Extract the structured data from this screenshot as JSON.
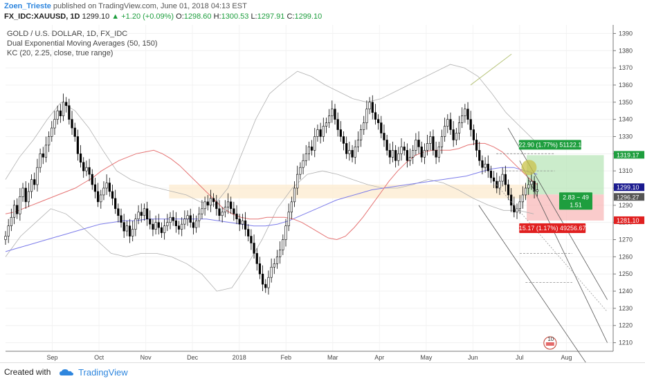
{
  "header": {
    "author": "Zoen_Trieste",
    "published_text": "published on TradingView.com, June 01, 2018 04:13 EST",
    "symbol": "FX_IDC:XAUUSD, 1D",
    "last": "1299.10",
    "change_arrow": "▲",
    "change": "+1.20 (+0.09%)",
    "open_label": "O:",
    "open": "1298.60",
    "high_label": "H:",
    "high": "1300.53",
    "low_label": "L:",
    "low": "1297.91",
    "close_label": "C:",
    "close": "1299.10"
  },
  "legend": {
    "line1": "GOLD / U.S. DOLLAR, 1D, FX_IDC",
    "line2": "Dual Exponential Moving Averages (50, 150)",
    "line3": "KC (20, 2.25, close, true range)"
  },
  "footer": {
    "created_with": "Created with",
    "brand": "TradingView"
  },
  "colors": {
    "up_candle": "#ffffff",
    "down_candle": "#000000",
    "ema50": "#e57373",
    "ema150": "#7b7bea",
    "kc_band": "#b0b0b0",
    "profit_zone": "#b9e6b9",
    "loss_zone": "#f8b9b9",
    "entry_band": "#fdecd2",
    "price_tag": "#1a1a8f",
    "target_tag": "#1e9e3e",
    "stop_tag": "#e02020"
  },
  "chart_data": {
    "type": "candlestick",
    "y_axis": {
      "min": 1205,
      "max": 1395,
      "ticks": [
        1210,
        1220,
        1230,
        1240,
        1250,
        1260,
        1270,
        1280,
        1290,
        1300,
        1310,
        1320,
        1330,
        1340,
        1350,
        1360,
        1370,
        1380,
        1390
      ]
    },
    "x_axis_labels": [
      "Sep",
      "Oct",
      "Nov",
      "Dec",
      "2018",
      "Feb",
      "Mar",
      "Apr",
      "May",
      "Jun",
      "Jul",
      "Aug"
    ],
    "x_axis_label_days": [
      40,
      80,
      120,
      160,
      200,
      240,
      280,
      320,
      360,
      400,
      440,
      480
    ],
    "x_range_days": [
      0,
      520
    ],
    "closes": [
      1272,
      1278,
      1283,
      1290,
      1285,
      1295,
      1300,
      1292,
      1298,
      1305,
      1302,
      1312,
      1320,
      1318,
      1325,
      1330,
      1335,
      1340,
      1345,
      1342,
      1350,
      1348,
      1340,
      1335,
      1330,
      1320,
      1315,
      1310,
      1312,
      1308,
      1302,
      1298,
      1292,
      1296,
      1300,
      1303,
      1298,
      1294,
      1288,
      1284,
      1280,
      1275,
      1278,
      1272,
      1276,
      1282,
      1286,
      1284,
      1288,
      1282,
      1279,
      1276,
      1280,
      1277,
      1274,
      1278,
      1280,
      1283,
      1281,
      1278,
      1276,
      1279,
      1282,
      1284,
      1280,
      1277,
      1281,
      1285,
      1288,
      1292,
      1290,
      1294,
      1292,
      1288,
      1284,
      1286,
      1289,
      1292,
      1288,
      1285,
      1282,
      1279,
      1281,
      1276,
      1272,
      1268,
      1262,
      1256,
      1250,
      1244,
      1242,
      1248,
      1254,
      1256,
      1260,
      1264,
      1270,
      1278,
      1286,
      1292,
      1300,
      1308,
      1312,
      1316,
      1320,
      1324,
      1322,
      1330,
      1334,
      1330,
      1336,
      1338,
      1342,
      1346,
      1340,
      1334,
      1330,
      1326,
      1320,
      1322,
      1318,
      1324,
      1328,
      1334,
      1338,
      1346,
      1350,
      1344,
      1340,
      1338,
      1332,
      1328,
      1322,
      1318,
      1322,
      1316,
      1320,
      1324,
      1322,
      1316,
      1318,
      1322,
      1328,
      1324,
      1318,
      1322,
      1326,
      1330,
      1322,
      1318,
      1324,
      1330,
      1336,
      1340,
      1334,
      1328,
      1332,
      1338,
      1342,
      1346,
      1340,
      1334,
      1328,
      1322,
      1316,
      1312,
      1314,
      1310,
      1306,
      1304,
      1300,
      1304,
      1308,
      1302,
      1296,
      1290,
      1286,
      1288,
      1292,
      1296,
      1300,
      1302,
      1304,
      1298,
      1299
    ],
    "ema50": [
      1285,
      1286,
      1288,
      1290,
      1292,
      1294,
      1296,
      1298,
      1300,
      1303,
      1306,
      1310,
      1313,
      1316,
      1318,
      1320,
      1321,
      1322,
      1320,
      1317,
      1313,
      1308,
      1303,
      1298,
      1293,
      1288,
      1285,
      1283,
      1282,
      1282,
      1283,
      1283,
      1283,
      1282,
      1280,
      1277,
      1274,
      1271,
      1270,
      1272,
      1277,
      1283,
      1290,
      1297,
      1304,
      1310,
      1315,
      1319,
      1321,
      1322,
      1322,
      1322,
      1323,
      1325,
      1326,
      1326,
      1324,
      1321,
      1316,
      1311,
      1306,
      1302
    ],
    "ema150": [
      1263,
      1265,
      1267,
      1269,
      1271,
      1273,
      1275,
      1277,
      1279,
      1280,
      1281,
      1281,
      1282,
      1282,
      1282,
      1282,
      1282,
      1282,
      1281,
      1280,
      1279,
      1278,
      1278,
      1279,
      1281,
      1284,
      1287,
      1290,
      1293,
      1295,
      1297,
      1299,
      1300,
      1301,
      1302,
      1303,
      1304,
      1305,
      1306,
      1307,
      1309,
      1311,
      1312,
      1312,
      1310,
      1308
    ],
    "kc_upper": [
      1305,
      1318,
      1328,
      1340,
      1350,
      1345,
      1335,
      1322,
      1310,
      1305,
      1302,
      1300,
      1298,
      1296,
      1292,
      1290,
      1300,
      1320,
      1340,
      1355,
      1362,
      1368,
      1365,
      1360,
      1356,
      1352,
      1350,
      1352,
      1356,
      1360,
      1364,
      1368,
      1372,
      1370,
      1365,
      1355,
      1344,
      1336,
      1328
    ],
    "kc_lower": [
      1260,
      1272,
      1280,
      1288,
      1285,
      1278,
      1270,
      1262,
      1260,
      1262,
      1262,
      1260,
      1256,
      1250,
      1240,
      1242,
      1255,
      1270,
      1288,
      1300,
      1308,
      1310,
      1308,
      1305,
      1302,
      1300,
      1300,
      1302,
      1305,
      1303,
      1299,
      1294,
      1290,
      1287,
      1287,
      1285
    ],
    "position": {
      "entry": 1296.27,
      "target": 1319.17,
      "stop": 1281.1,
      "last": 1299.1,
      "target_label": "22.90 (1.77%) 51122.1",
      "stop_label": "15.17 (1.17%) 49256.67",
      "ratio_label_1": "2.83 ~ 49",
      "ratio_label_2": "1.51"
    },
    "price_tags": [
      "1319.17",
      "1299.10",
      "1296.27",
      "1281.10"
    ],
    "event_badge": "10"
  }
}
